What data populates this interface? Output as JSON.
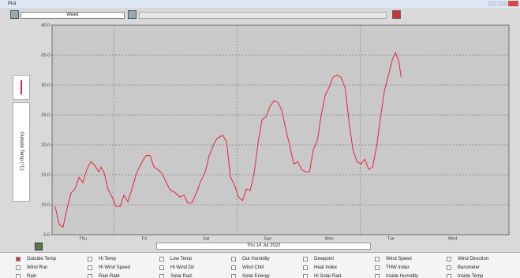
{
  "window": {
    "title": "Plot"
  },
  "toolbar": {
    "period": "Week"
  },
  "chart_data": {
    "type": "line",
    "y_label": "Outside Temp (°C)",
    "date": "Thu 14 Jul 2022",
    "xlim": [
      0,
      178
    ],
    "xticks": [
      {
        "value": 12,
        "label": "Thu"
      },
      {
        "value": 36,
        "label": "Fri"
      },
      {
        "value": 60,
        "label": "Sat"
      },
      {
        "value": 84,
        "label": "Sun"
      },
      {
        "value": 108,
        "label": "Mon"
      },
      {
        "value": 132,
        "label": "Tue"
      },
      {
        "value": 156,
        "label": "Wed"
      }
    ],
    "xgrid": [
      24,
      72,
      120
    ],
    "ylim": [
      5,
      40
    ],
    "yticks": [
      {
        "value": 5,
        "label": "5.0"
      },
      {
        "value": 10,
        "label": "10.0"
      },
      {
        "value": 15,
        "label": "15.0"
      },
      {
        "value": 20,
        "label": "20.0"
      },
      {
        "value": 25,
        "label": "25.0"
      },
      {
        "value": 30,
        "label": "30.0"
      },
      {
        "value": 35,
        "label": "35.0"
      },
      {
        "value": 40,
        "label": "40.0"
      }
    ],
    "grid": true,
    "series": [
      {
        "name": "Outside Temp",
        "color": "#e8223e",
        "x": [
          1.2,
          2.8,
          4.3,
          5.8,
          7.4,
          8.9,
          10.5,
          12,
          13.5,
          15.1,
          16.6,
          18.2,
          19.1,
          20.3,
          21.8,
          23.4,
          24.9,
          26.5,
          28,
          29.5,
          31.1,
          32.9,
          35.1,
          36.6,
          38.2,
          39.7,
          41.2,
          42.8,
          44.3,
          45.8,
          48,
          49.8,
          51.4,
          52.9,
          54.5,
          56.6,
          58.2,
          59.7,
          61.2,
          62.8,
          64.3,
          66.5,
          68,
          69.5,
          71.1,
          72.6,
          74.2,
          75.7,
          77.2,
          78.8,
          80.3,
          81.8,
          83.4,
          84.9,
          86.5,
          88,
          89.5,
          91.1,
          92.6,
          94.2,
          95.7,
          97.2,
          98.8,
          100.3,
          101.8,
          103.4,
          104.9,
          106.5,
          108,
          109.5,
          111.1,
          112.6,
          114.2,
          115.7,
          117.2,
          118.8,
          120.3,
          121.8,
          123.4,
          124.9,
          126.5,
          128,
          129.5,
          131.1,
          132.6,
          133.8,
          135.1,
          136
        ],
        "values": [
          9.7,
          6.7,
          6.3,
          9.3,
          12.0,
          12.6,
          14.6,
          13.7,
          15.9,
          17.2,
          16.6,
          15.5,
          16.3,
          15.3,
          12.6,
          11.3,
          9.7,
          9.7,
          11.6,
          10.5,
          12.6,
          15.3,
          17.2,
          18.2,
          18.2,
          16.3,
          15.9,
          15.3,
          13.9,
          12.6,
          12.0,
          11.3,
          11.6,
          10.3,
          10.3,
          12.4,
          14.2,
          15.5,
          18.2,
          19.9,
          21.1,
          21.6,
          20.5,
          14.6,
          13.3,
          11.3,
          10.7,
          12.6,
          12.4,
          15.5,
          20.5,
          24.2,
          24.7,
          26.4,
          27.4,
          27.1,
          25.8,
          22.5,
          19.9,
          16.8,
          17.2,
          15.9,
          15.5,
          15.5,
          19.2,
          20.8,
          25.1,
          28.4,
          29.7,
          31.3,
          31.7,
          31.3,
          29.5,
          23.8,
          19.2,
          17.2,
          16.8,
          17.6,
          15.9,
          16.3,
          19.9,
          24.7,
          29.1,
          31.7,
          34.3,
          35.4,
          33.9,
          31.3
        ]
      }
    ]
  },
  "options": {
    "rows": [
      [
        {
          "label": "Outside Temp",
          "checked": true
        },
        {
          "label": "Hi Temp",
          "checked": false
        },
        {
          "label": "Low Temp",
          "checked": false
        },
        {
          "label": "Out Humidity",
          "checked": false
        },
        {
          "label": "Dewpoint",
          "checked": false
        },
        {
          "label": "Wind Speed",
          "checked": false
        },
        {
          "label": "Wind Direction",
          "checked": false
        }
      ],
      [
        {
          "label": "Wind Run",
          "checked": false
        },
        {
          "label": "Hi Wind Speed",
          "checked": false
        },
        {
          "label": "Hi Wind Dir",
          "checked": false
        },
        {
          "label": "Wind Chill",
          "checked": false
        },
        {
          "label": "Heat Index",
          "checked": false
        },
        {
          "label": "THW Index",
          "checked": false
        },
        {
          "label": "Barometer",
          "checked": false
        }
      ],
      [
        {
          "label": "Rain",
          "checked": false
        },
        {
          "label": "Rain Rate",
          "checked": false
        },
        {
          "label": "Solar Rad.",
          "checked": false
        },
        {
          "label": "Solar Energy",
          "checked": false
        },
        {
          "label": "Hi Solar Rad.",
          "checked": false
        },
        {
          "label": "Inside Humidity",
          "checked": false
        },
        {
          "label": "Inside Temp",
          "checked": false
        }
      ]
    ]
  }
}
